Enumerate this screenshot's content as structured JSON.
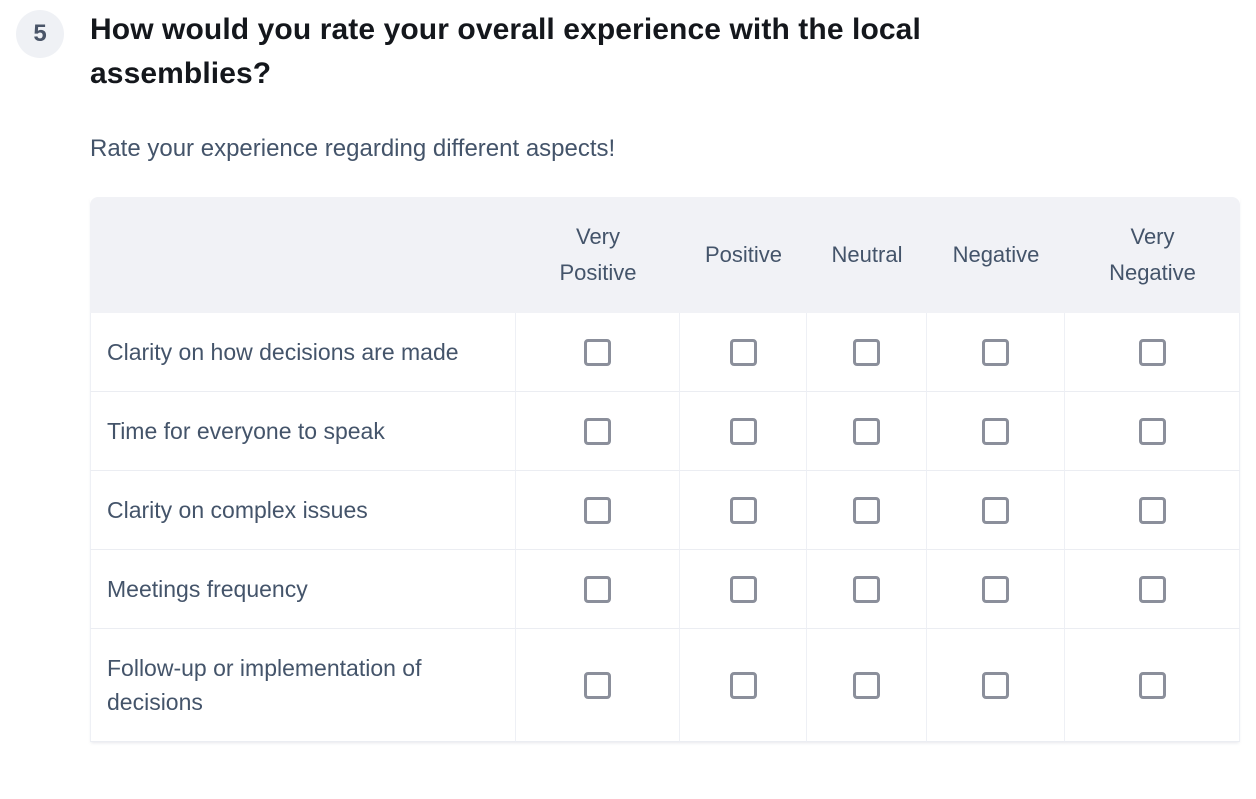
{
  "question": {
    "number": "5",
    "title": "How would you rate your overall experience with the local assemblies?",
    "subtitle": "Rate your experience regarding different aspects!"
  },
  "matrix": {
    "column_headers": [
      "Very\nPositive",
      "Positive",
      "Neutral",
      "Negative",
      "Very\nNegative"
    ],
    "row_labels": [
      "Clarity on how decisions are made",
      "Time for everyone to speak",
      "Clarity on complex issues",
      "Meetings frequency",
      "Follow-up or implementation of decisions"
    ],
    "checkbox_state": "all unchecked"
  },
  "colors": {
    "header_bg": "#f1f2f6",
    "body_text": "#44546a",
    "title_text": "#14171c",
    "badge_bg": "#eff1f5",
    "checkbox_border": "#8b8f9b",
    "row_divider": "#ebedf2",
    "column_divider": "#eef0f5"
  }
}
